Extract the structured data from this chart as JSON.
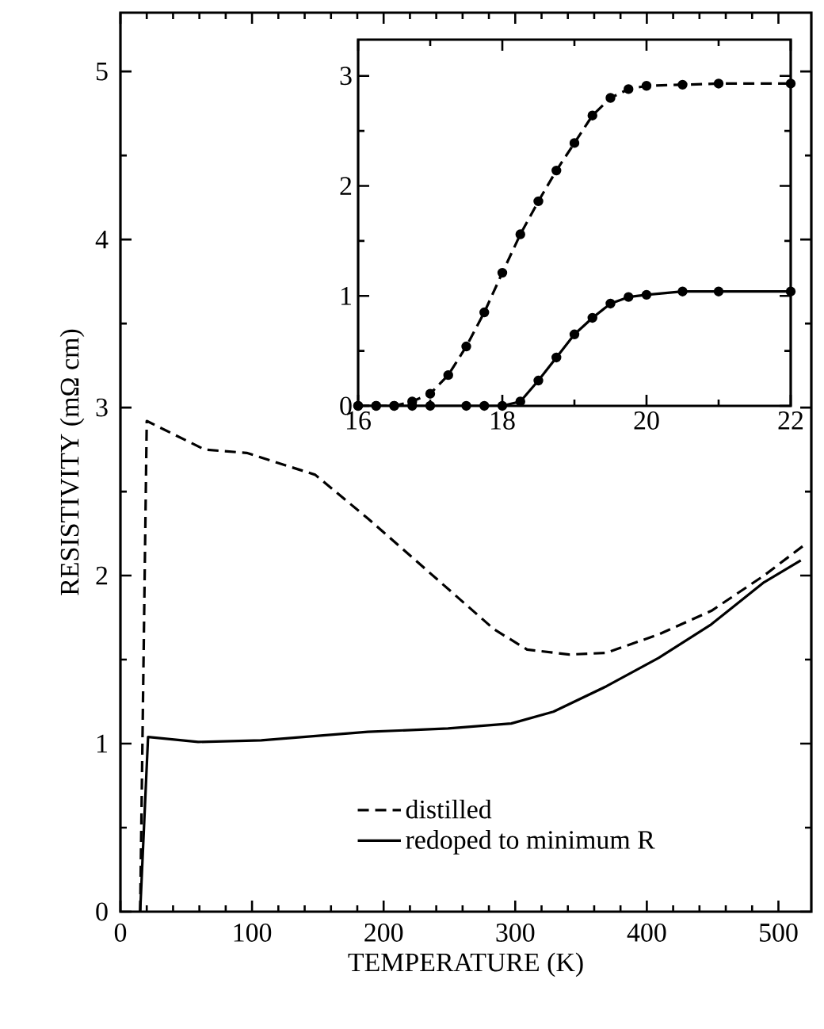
{
  "chart_data": [
    {
      "type": "line",
      "xlabel": "TEMPERATURE (K)",
      "ylabel": "RESISTIVITY (mΩ cm)",
      "xlim": [
        0,
        525
      ],
      "ylim": [
        0,
        5.35
      ],
      "xticks": [
        0,
        100,
        200,
        300,
        400,
        500
      ],
      "yticks": [
        0,
        1,
        2,
        3,
        4,
        5
      ],
      "legend": "bottom",
      "series": [
        {
          "name": "distilled",
          "color": "#000000",
          "line_style": "dashed",
          "x": [
            15,
            20,
            64,
            96,
            148,
            188,
            220,
            252,
            284,
            309,
            341,
            369,
            409,
            449,
            489,
            521
          ],
          "values": [
            0,
            2.92,
            2.75,
            2.73,
            2.6,
            2.34,
            2.12,
            1.9,
            1.68,
            1.56,
            1.53,
            1.54,
            1.65,
            1.79,
            2.0,
            2.19
          ]
        },
        {
          "name": "redoped to minimum R",
          "color": "#000000",
          "line_style": "solid",
          "x": [
            15,
            21,
            59,
            107,
            188,
            249,
            297,
            329,
            369,
            409,
            449,
            489,
            517
          ],
          "values": [
            0,
            1.04,
            1.01,
            1.02,
            1.07,
            1.09,
            1.12,
            1.19,
            1.34,
            1.51,
            1.71,
            1.96,
            2.09
          ]
        }
      ]
    },
    {
      "type": "line",
      "xlim": [
        16,
        22
      ],
      "ylim": [
        0,
        3.33
      ],
      "xticks": [
        16,
        18,
        20,
        22
      ],
      "yticks": [
        0,
        1,
        2,
        3
      ],
      "marker": "circle",
      "series": [
        {
          "color": "#000000",
          "line_style": "dashed",
          "x": [
            16,
            16.25,
            16.5,
            16.75,
            17,
            17.25,
            17.5,
            17.75,
            18,
            18.25,
            18.5,
            18.75,
            19,
            19.25,
            19.5,
            19.75,
            20,
            20.5,
            21,
            22
          ],
          "values": [
            0,
            0,
            0,
            0.04,
            0.11,
            0.28,
            0.54,
            0.85,
            1.21,
            1.56,
            1.86,
            2.14,
            2.39,
            2.64,
            2.8,
            2.88,
            2.91,
            2.92,
            2.93,
            2.93
          ]
        },
        {
          "color": "#000000",
          "line_style": "solid",
          "x": [
            16,
            16.25,
            16.5,
            16.75,
            17,
            17.5,
            17.75,
            18,
            18.25,
            18.5,
            18.75,
            19,
            19.25,
            19.5,
            19.75,
            20,
            20.5,
            21,
            22
          ],
          "values": [
            0,
            0,
            0,
            0,
            0,
            0,
            0,
            0,
            0.04,
            0.23,
            0.44,
            0.65,
            0.8,
            0.93,
            0.99,
            1.01,
            1.04,
            1.04,
            1.04
          ]
        }
      ]
    }
  ]
}
